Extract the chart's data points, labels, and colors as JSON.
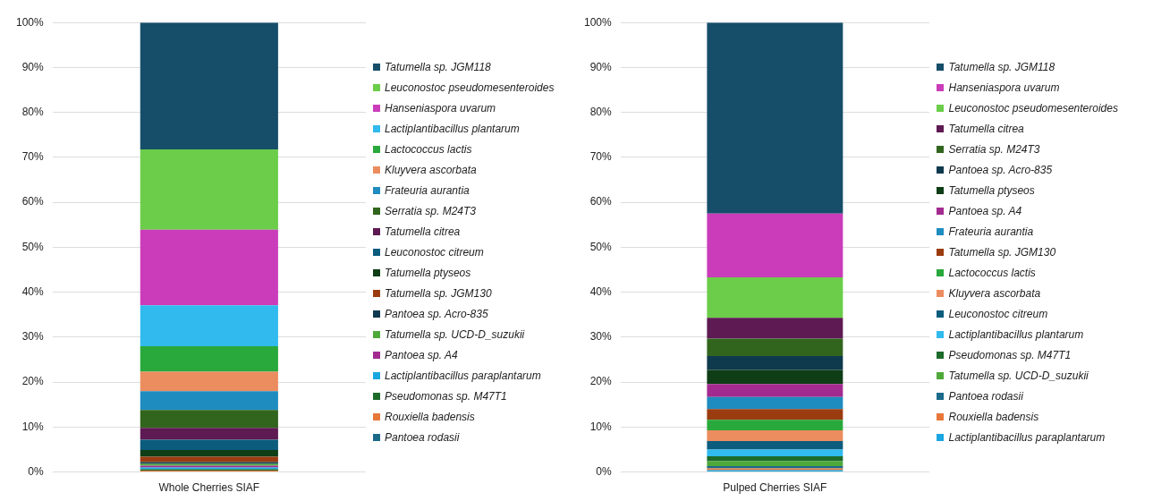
{
  "chart_data": [
    {
      "type": "bar",
      "stacked": true,
      "categories": [
        "Whole Cherries SIAF"
      ],
      "ylim": [
        0,
        100
      ],
      "yticks": [
        {
          "value": 0,
          "label": "0%"
        },
        {
          "value": 10,
          "label": "10%"
        },
        {
          "value": 20,
          "label": "20%"
        },
        {
          "value": 30,
          "label": "30%"
        },
        {
          "value": 40,
          "label": "40%"
        },
        {
          "value": 50,
          "label": "50%"
        },
        {
          "value": 60,
          "label": "60%"
        },
        {
          "value": 70,
          "label": "70%"
        },
        {
          "value": 80,
          "label": "80%"
        },
        {
          "value": 90,
          "label": "90%"
        },
        {
          "value": 100,
          "label": "100%"
        }
      ],
      "grid": "y",
      "legend": "right",
      "series": [
        {
          "name": "Pantoea rodasii",
          "color": "#1b6a8a",
          "values": [
            0.1
          ]
        },
        {
          "name": "Rouxiella badensis",
          "color": "#e8773a",
          "values": [
            0.2
          ]
        },
        {
          "name": "Pseudomonas sp. M47T1",
          "color": "#1d6b2a",
          "values": [
            0.3
          ]
        },
        {
          "name": "Lactiplantibacillus paraplantarum",
          "color": "#1aa6e0",
          "values": [
            0.4
          ]
        },
        {
          "name": "Pantoea sp. A4",
          "color": "#a32b90",
          "values": [
            0.4
          ]
        },
        {
          "name": "Tatumella sp. UCD-D_suzukii",
          "color": "#4fa93a",
          "values": [
            0.4
          ]
        },
        {
          "name": "Pantoea sp. Acro-835",
          "color": "#0f3a4e",
          "values": [
            0.4
          ]
        },
        {
          "name": "Tatumella sp. JGM130",
          "color": "#9b3c10",
          "values": [
            1.2
          ]
        },
        {
          "name": "Tatumella ptyseos",
          "color": "#0e3d16",
          "values": [
            1.5
          ]
        },
        {
          "name": "Leuconostoc citreum",
          "color": "#0b5c7d",
          "values": [
            2.3
          ]
        },
        {
          "name": "Tatumella citrea",
          "color": "#5e1a52",
          "values": [
            2.6
          ]
        },
        {
          "name": "Serratia sp. M24T3",
          "color": "#31651e",
          "values": [
            4.0
          ]
        },
        {
          "name": "Frateuria aurantia",
          "color": "#1f8cc0",
          "values": [
            4.2
          ]
        },
        {
          "name": "Kluyvera ascorbata",
          "color": "#ec8d5f",
          "values": [
            4.3
          ]
        },
        {
          "name": "Lactococcus lactis",
          "color": "#29a83c",
          "values": [
            5.7
          ]
        },
        {
          "name": "Lactiplantibacillus plantarum",
          "color": "#30baee",
          "values": [
            9.1
          ]
        },
        {
          "name": "Hanseniaspora uvarum",
          "color": "#cb3cba",
          "values": [
            16.8
          ]
        },
        {
          "name": "Leuconostoc pseudomesenteroides",
          "color": "#6bcd4a",
          "values": [
            17.9
          ]
        },
        {
          "name": "Tatumella sp. JGM118",
          "color": "#164e6a",
          "values": [
            28.2
          ]
        }
      ]
    },
    {
      "type": "bar",
      "stacked": true,
      "categories": [
        "Pulped Cherries SIAF"
      ],
      "ylim": [
        0,
        100
      ],
      "yticks": [
        {
          "value": 0,
          "label": "0%"
        },
        {
          "value": 10,
          "label": "10%"
        },
        {
          "value": 20,
          "label": "20%"
        },
        {
          "value": 30,
          "label": "30%"
        },
        {
          "value": 40,
          "label": "40%"
        },
        {
          "value": 50,
          "label": "50%"
        },
        {
          "value": 60,
          "label": "60%"
        },
        {
          "value": 70,
          "label": "70%"
        },
        {
          "value": 80,
          "label": "80%"
        },
        {
          "value": 90,
          "label": "90%"
        },
        {
          "value": 100,
          "label": "100%"
        }
      ],
      "grid": "y",
      "legend": "right",
      "series": [
        {
          "name": "Lactiplantibacillus paraplantarum",
          "color": "#1aa6e0",
          "values": [
            0.4
          ]
        },
        {
          "name": "Rouxiella badensis",
          "color": "#e8773a",
          "values": [
            0.4
          ]
        },
        {
          "name": "Pantoea rodasii",
          "color": "#1b6a8a",
          "values": [
            0.5
          ]
        },
        {
          "name": "Tatumella sp. UCD-D_suzukii",
          "color": "#4fa93a",
          "values": [
            1.1
          ]
        },
        {
          "name": "Pseudomonas sp. M47T1",
          "color": "#1d6b2a",
          "values": [
            1.1
          ]
        },
        {
          "name": "Lactiplantibacillus plantarum",
          "color": "#30baee",
          "values": [
            1.5
          ]
        },
        {
          "name": "Leuconostoc citreum",
          "color": "#0b5c7d",
          "values": [
            1.9
          ]
        },
        {
          "name": "Kluyvera ascorbata",
          "color": "#ec8d5f",
          "values": [
            2.4
          ]
        },
        {
          "name": "Lactococcus lactis",
          "color": "#29a83c",
          "values": [
            2.3
          ]
        },
        {
          "name": "Tatumella sp. JGM130",
          "color": "#9b3c10",
          "values": [
            2.4
          ]
        },
        {
          "name": "Frateuria aurantia",
          "color": "#1f8cc0",
          "values": [
            2.7
          ]
        },
        {
          "name": "Pantoea sp. A4",
          "color": "#a32b90",
          "values": [
            2.9
          ]
        },
        {
          "name": "Tatumella ptyseos",
          "color": "#0e3d16",
          "values": [
            3.1
          ]
        },
        {
          "name": "Pantoea sp. Acro-835",
          "color": "#0f3a4e",
          "values": [
            3.1
          ]
        },
        {
          "name": "Serratia sp. M24T3",
          "color": "#31651e",
          "values": [
            3.9
          ]
        },
        {
          "name": "Tatumella citrea",
          "color": "#5e1a52",
          "values": [
            4.6
          ]
        },
        {
          "name": "Leuconostoc pseudomesenteroides",
          "color": "#6bcd4a",
          "values": [
            9.0
          ]
        },
        {
          "name": "Hanseniaspora uvarum",
          "color": "#cb3cba",
          "values": [
            14.2
          ]
        },
        {
          "name": "Tatumella sp. JGM118",
          "color": "#164e6a",
          "values": [
            42.5
          ]
        }
      ]
    }
  ]
}
